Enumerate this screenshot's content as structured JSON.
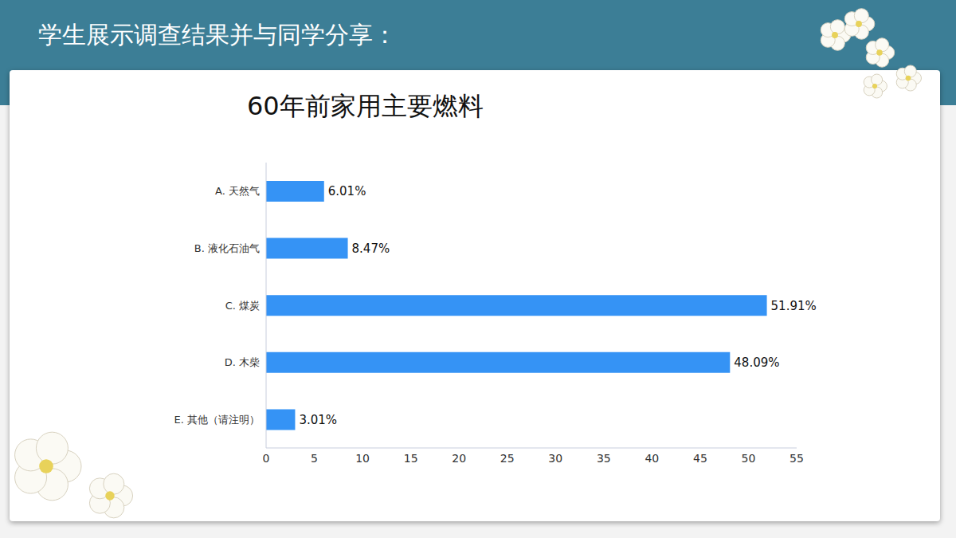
{
  "header": {
    "title": "学生展示调查结果并与同学分享："
  },
  "chart_data": {
    "type": "bar",
    "title": "60年前家用主要燃料",
    "orientation": "horizontal",
    "categories": [
      "A. 天然气",
      "B. 液化石油气",
      "C. 煤炭",
      "D. 木柴",
      "E. 其他（请注明）"
    ],
    "values": [
      6.01,
      8.47,
      51.91,
      48.09,
      3.01
    ],
    "value_labels": [
      "6.01%",
      "8.47%",
      "51.91%",
      "48.09%",
      "3.01%"
    ],
    "color": "#3593f5",
    "xlim": [
      0,
      55
    ],
    "xticks": [
      0,
      5,
      10,
      15,
      20,
      25,
      30,
      35,
      40,
      45,
      50,
      55
    ],
    "grid": false,
    "data_labels": true
  }
}
